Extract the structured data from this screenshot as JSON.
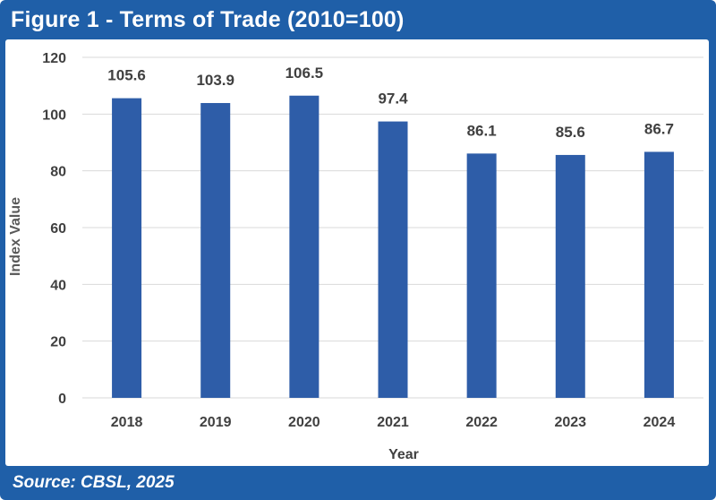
{
  "figure": {
    "title": "Figure 1 - Terms of Trade (2010=100)",
    "source": "Source: CBSL, 2025"
  },
  "colors": {
    "frame": "#1f5fa8",
    "bar": "#2e5da8",
    "grid": "#d9d9d9",
    "text": "#404040"
  },
  "chart_data": {
    "type": "bar",
    "categories": [
      "2018",
      "2019",
      "2020",
      "2021",
      "2022",
      "2023",
      "2024"
    ],
    "values": [
      105.6,
      103.9,
      106.5,
      97.4,
      86.1,
      85.6,
      86.7
    ],
    "data_labels": [
      "105.6",
      "103.9",
      "106.5",
      "97.4",
      "86.1",
      "85.6",
      "86.7"
    ],
    "title": "Figure 1 - Terms of Trade (2010=100)",
    "xlabel": "Year",
    "ylabel": "Index Value",
    "ylim": [
      0,
      120
    ],
    "yticks": [
      0,
      20,
      40,
      60,
      80,
      100,
      120
    ],
    "grid": true,
    "legend": "none"
  }
}
